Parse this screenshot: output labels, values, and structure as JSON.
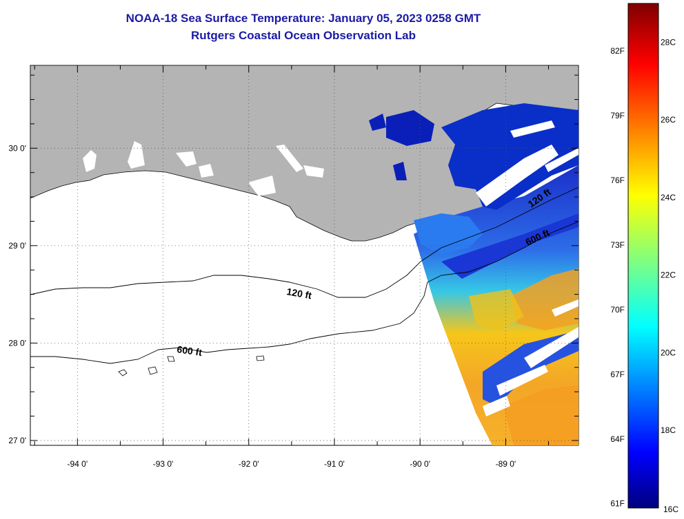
{
  "header": {
    "title": "NOAA-18 Sea Surface Temperature:  January 05, 2023 0258 GMT",
    "subtitle": "Rutgers Coastal Ocean Observation Lab"
  },
  "map": {
    "lon_ticks": [
      {
        "value": -94,
        "label": "-94 0'"
      },
      {
        "value": -93,
        "label": "-93 0'"
      },
      {
        "value": -92,
        "label": "-92 0'"
      },
      {
        "value": -91,
        "label": "-91 0'"
      },
      {
        "value": -90,
        "label": "-90 0'"
      },
      {
        "value": -89,
        "label": "-89 0'"
      }
    ],
    "lat_ticks": [
      {
        "value": 30,
        "label": "30 0'"
      },
      {
        "value": 29,
        "label": "29 0'"
      },
      {
        "value": 28,
        "label": "28 0'"
      },
      {
        "value": 27,
        "label": "27 0'"
      }
    ],
    "lon_range": [
      -94.55,
      -88.15
    ],
    "lat_range": [
      26.95,
      30.85
    ],
    "contours": [
      {
        "depth": "120 ft",
        "label": "120 ft"
      },
      {
        "depth": "600 ft",
        "label": "600 ft"
      }
    ],
    "colors": {
      "land": "#b4b4b4",
      "no_data": "#ffffff",
      "coastline": "#000000"
    }
  },
  "colorbar": {
    "fahrenheit_labels": [
      "82F",
      "79F",
      "76F",
      "73F",
      "70F",
      "67F",
      "64F",
      "61F"
    ],
    "celsius_labels": [
      "28C",
      "26C",
      "24C",
      "22C",
      "20C",
      "18C",
      "16C"
    ],
    "range_c": [
      16,
      29
    ],
    "colormap": "jet"
  }
}
